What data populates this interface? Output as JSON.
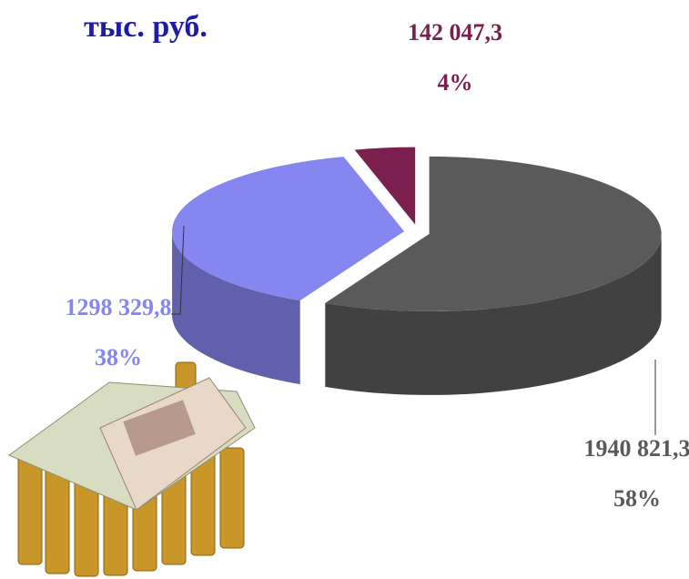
{
  "chart_data": {
    "type": "pie",
    "title": "тыс. руб.",
    "values": [
      1940821.3,
      1298329.8,
      142047.3
    ],
    "value_labels": [
      "1940 821,3",
      "1298 329,8",
      "142 047,3"
    ],
    "percents": [
      58,
      38,
      4
    ],
    "percent_labels": [
      "58%",
      "38%",
      "4%"
    ],
    "colors": [
      "#5a5a5a",
      "#8686f0",
      "#7b1f4f"
    ]
  }
}
